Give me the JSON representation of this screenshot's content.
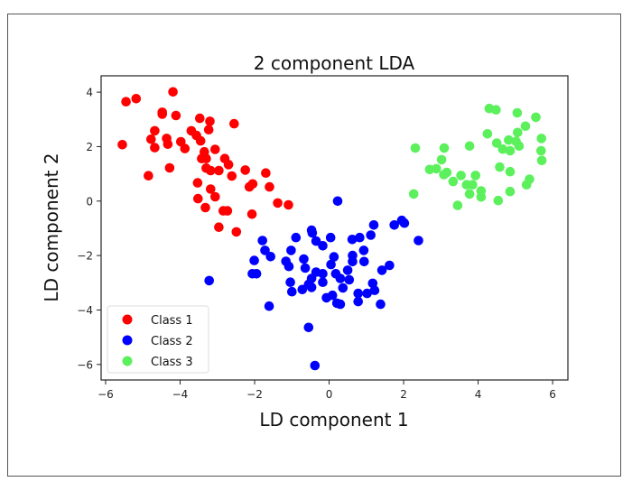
{
  "chart_data": {
    "type": "scatter",
    "title": "2 component LDA",
    "xlabel": "LD component 1",
    "ylabel": "LD component 2",
    "xlim": [
      -6.12,
      6.41
    ],
    "ylim": [
      -6.57,
      4.6
    ],
    "xticks": [
      -6,
      -4,
      -2,
      0,
      2,
      4,
      6
    ],
    "yticks": [
      -6,
      -4,
      -2,
      0,
      2,
      4
    ],
    "xtick_labels": [
      "−6",
      "−4",
      "−2",
      "0",
      "2",
      "4",
      "6"
    ],
    "ytick_labels": [
      "−6",
      "−4",
      "−2",
      "0",
      "2",
      "4"
    ],
    "grid": false,
    "legend_position": "lower-left",
    "series": [
      {
        "name": "Class 1",
        "color": "#ff0000",
        "points": [
          [
            -5.55,
            2.07
          ],
          [
            -5.45,
            3.65
          ],
          [
            -5.18,
            3.76
          ],
          [
            -4.19,
            4.01
          ],
          [
            -4.48,
            3.26
          ],
          [
            -4.48,
            3.19
          ],
          [
            -4.11,
            3.14
          ],
          [
            -4.68,
            2.58
          ],
          [
            -4.78,
            2.27
          ],
          [
            -4.68,
            1.96
          ],
          [
            -4.85,
            0.93
          ],
          [
            -4.28,
            1.22
          ],
          [
            -4.36,
            2.3
          ],
          [
            -4.33,
            2.09
          ],
          [
            -3.98,
            2.18
          ],
          [
            -3.87,
            1.93
          ],
          [
            -3.7,
            2.58
          ],
          [
            -3.56,
            2.41
          ],
          [
            -3.47,
            3.04
          ],
          [
            -3.2,
            2.93
          ],
          [
            -3.23,
            2.62
          ],
          [
            -2.55,
            2.84
          ],
          [
            -3.45,
            2.21
          ],
          [
            -3.42,
            1.56
          ],
          [
            -3.3,
            1.56
          ],
          [
            -3.06,
            1.9
          ],
          [
            -3.18,
            1.12
          ],
          [
            -2.96,
            1.12
          ],
          [
            -2.8,
            1.56
          ],
          [
            -2.7,
            1.34
          ],
          [
            -2.61,
            0.92
          ],
          [
            -2.25,
            1.14
          ],
          [
            -2.14,
            0.52
          ],
          [
            -2.05,
            0.63
          ],
          [
            -1.7,
            1.03
          ],
          [
            -1.6,
            0.52
          ],
          [
            -1.38,
            -0.07
          ],
          [
            -1.09,
            -0.14
          ],
          [
            -3.53,
            0.67
          ],
          [
            -3.52,
            0.09
          ],
          [
            -3.32,
            -0.24
          ],
          [
            -3.18,
            0.44
          ],
          [
            -3.06,
            0.16
          ],
          [
            -2.84,
            -0.36
          ],
          [
            -2.73,
            -0.36
          ],
          [
            -2.96,
            -0.96
          ],
          [
            -2.49,
            -1.13
          ],
          [
            -2.07,
            -0.48
          ],
          [
            -3.35,
            1.81
          ],
          [
            -3.3,
            1.21
          ]
        ]
      },
      {
        "name": "Class 2",
        "color": "#0000ff",
        "points": [
          [
            0.23,
            0.0
          ],
          [
            -0.47,
            -1.07
          ],
          [
            -0.45,
            -1.17
          ],
          [
            -1.79,
            -1.45
          ],
          [
            -0.89,
            -1.34
          ],
          [
            -0.35,
            -1.47
          ],
          [
            -0.17,
            -1.64
          ],
          [
            0.04,
            -1.34
          ],
          [
            0.62,
            -1.41
          ],
          [
            0.82,
            -1.34
          ],
          [
            1.12,
            -1.25
          ],
          [
            1.2,
            -0.88
          ],
          [
            1.75,
            -0.88
          ],
          [
            1.95,
            -0.71
          ],
          [
            2.02,
            -0.81
          ],
          [
            2.4,
            -1.45
          ],
          [
            -1.72,
            -1.81
          ],
          [
            -1.57,
            -2.04
          ],
          [
            -1.02,
            -1.81
          ],
          [
            -2.01,
            -2.18
          ],
          [
            -1.16,
            -2.21
          ],
          [
            -1.08,
            -2.4
          ],
          [
            -0.68,
            -2.13
          ],
          [
            -0.64,
            -2.46
          ],
          [
            0.13,
            -2.05
          ],
          [
            0.05,
            -2.33
          ],
          [
            0.63,
            -2.0
          ],
          [
            0.63,
            -2.22
          ],
          [
            0.93,
            -1.81
          ],
          [
            0.94,
            -2.22
          ],
          [
            -2.06,
            -2.67
          ],
          [
            -1.95,
            -2.67
          ],
          [
            -0.35,
            -2.61
          ],
          [
            -0.17,
            -2.67
          ],
          [
            0.18,
            -2.67
          ],
          [
            0.5,
            -2.54
          ],
          [
            0.54,
            -2.89
          ],
          [
            0.3,
            -2.84
          ],
          [
            -1.04,
            -2.98
          ],
          [
            -0.47,
            -2.84
          ],
          [
            -0.55,
            -3.06
          ],
          [
            -0.17,
            -2.98
          ],
          [
            -1.0,
            -3.33
          ],
          [
            -0.72,
            -3.25
          ],
          [
            -0.47,
            -3.17
          ],
          [
            0.37,
            -3.19
          ],
          [
            1.17,
            -3.02
          ],
          [
            1.42,
            -2.54
          ],
          [
            1.62,
            -2.36
          ],
          [
            0.78,
            -3.39
          ],
          [
            1.02,
            -3.39
          ],
          [
            1.22,
            -3.28
          ],
          [
            -0.07,
            -3.55
          ],
          [
            0.09,
            -3.46
          ],
          [
            0.21,
            -3.75
          ],
          [
            0.78,
            -3.69
          ],
          [
            -1.61,
            -3.86
          ],
          [
            1.38,
            -3.79
          ],
          [
            -3.22,
            -2.92
          ],
          [
            -0.55,
            -4.64
          ],
          [
            -0.38,
            -6.04
          ],
          [
            0.3,
            -3.79
          ]
        ]
      },
      {
        "name": "Class 3",
        "color": "#5cf05c",
        "points": [
          [
            4.3,
            3.4
          ],
          [
            4.48,
            3.35
          ],
          [
            5.05,
            3.24
          ],
          [
            5.55,
            3.08
          ],
          [
            5.27,
            2.75
          ],
          [
            4.25,
            2.47
          ],
          [
            5.7,
            2.3
          ],
          [
            5.06,
            2.52
          ],
          [
            2.315,
            1.95
          ],
          [
            3.09,
            1.95
          ],
          [
            3.77,
            2.02
          ],
          [
            4.5,
            2.13
          ],
          [
            4.82,
            2.24
          ],
          [
            5.02,
            2.19
          ],
          [
            4.66,
            1.91
          ],
          [
            4.86,
            1.85
          ],
          [
            5.1,
            2.02
          ],
          [
            5.69,
            1.85
          ],
          [
            5.71,
            1.49
          ],
          [
            3.02,
            1.52
          ],
          [
            2.7,
            1.16
          ],
          [
            2.88,
            1.19
          ],
          [
            3.16,
            1.05
          ],
          [
            3.08,
            0.97
          ],
          [
            3.54,
            0.94
          ],
          [
            3.93,
            0.94
          ],
          [
            4.58,
            1.25
          ],
          [
            4.86,
            1.08
          ],
          [
            3.33,
            0.72
          ],
          [
            3.69,
            0.6
          ],
          [
            3.85,
            0.6
          ],
          [
            5.38,
            0.8
          ],
          [
            5.3,
            0.6
          ],
          [
            2.27,
            0.26
          ],
          [
            3.77,
            0.26
          ],
          [
            4.08,
            0.37
          ],
          [
            4.08,
            0.15
          ],
          [
            4.86,
            0.35
          ],
          [
            4.54,
            0.02
          ],
          [
            3.45,
            -0.16
          ]
        ]
      }
    ]
  }
}
